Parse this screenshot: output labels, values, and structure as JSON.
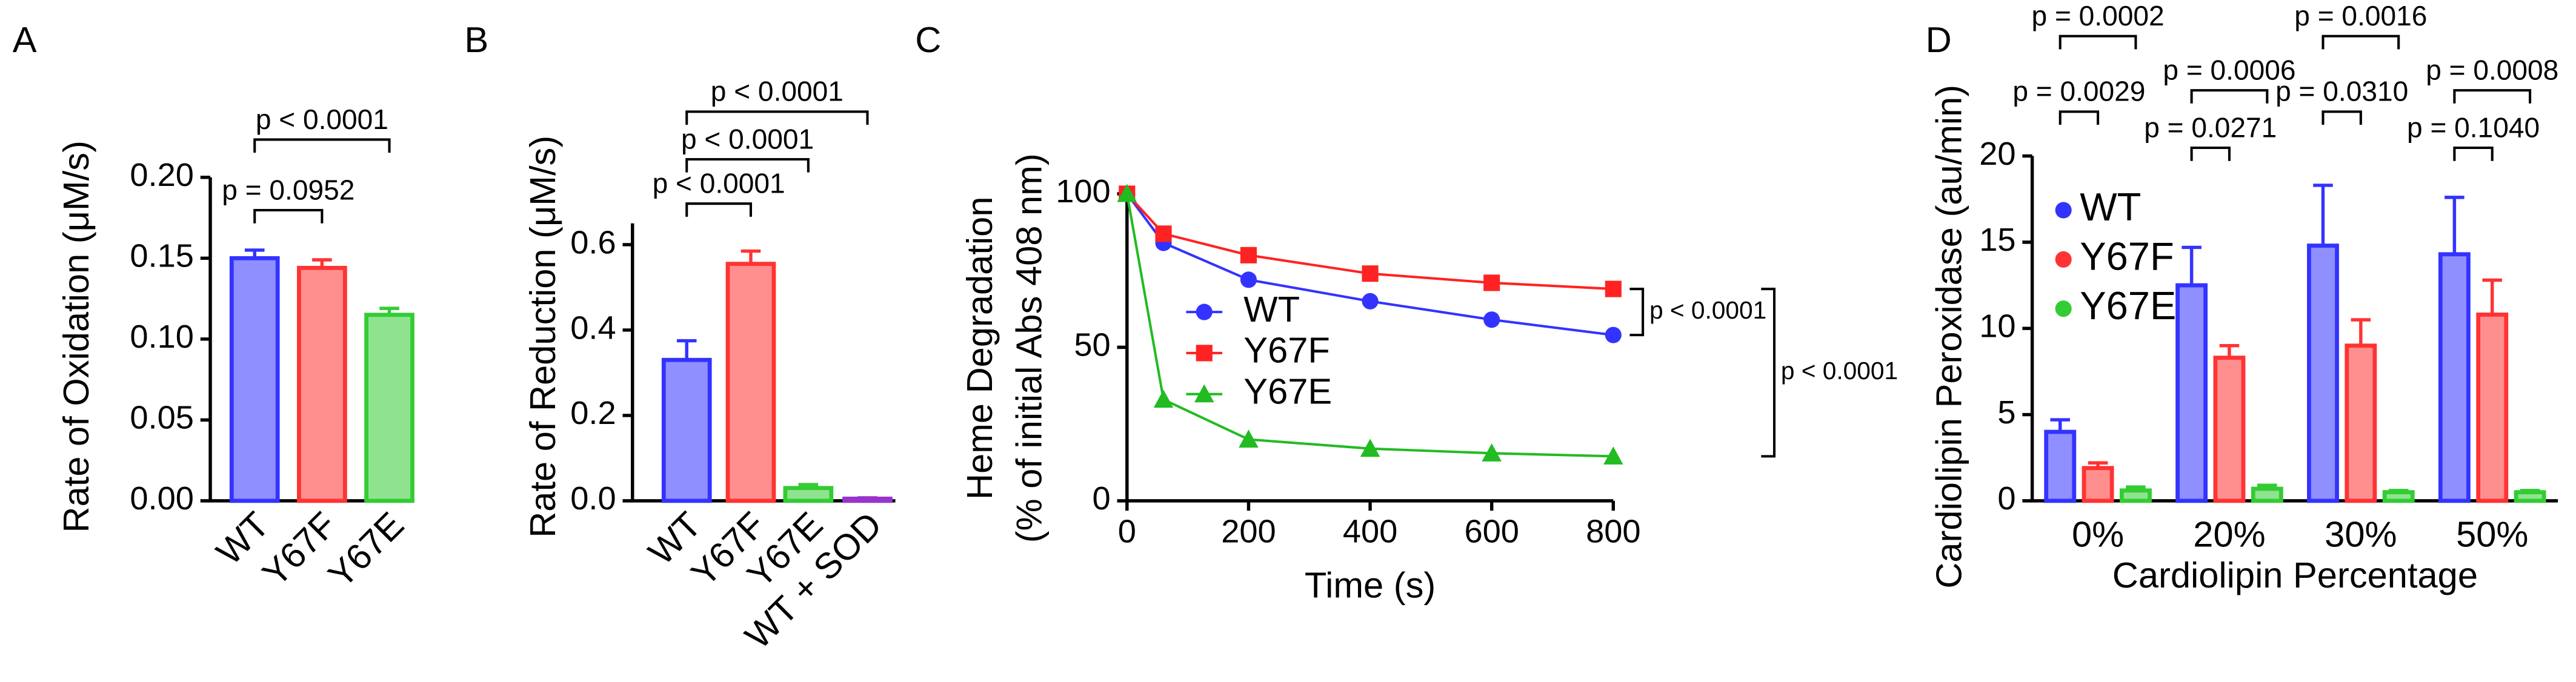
{
  "chart_data": [
    {
      "type": "bar",
      "label": "A",
      "ylabel": "Rate of Oxidation (μM/s)",
      "categories": [
        "WT",
        "Y67F",
        "Y67E"
      ],
      "values": [
        0.15,
        0.144,
        0.115
      ],
      "errors": [
        0.005,
        0.005,
        0.004
      ],
      "colors": [
        "#3333ff",
        "#ff3333",
        "#33cc33"
      ],
      "ylim": [
        0,
        0.2
      ],
      "yticks": [
        {
          "value": 0,
          "label": "0.00"
        },
        {
          "value": 0.05,
          "label": "0.05"
        },
        {
          "value": 0.1,
          "label": "0.10"
        },
        {
          "value": 0.15,
          "label": "0.15"
        },
        {
          "value": 0.2,
          "label": "0.20"
        }
      ],
      "annotations": [
        "p = 0.0952",
        "p < 0.0001"
      ]
    },
    {
      "type": "bar",
      "label": "B",
      "ylabel": "Rate of Reduction (μM/s)",
      "categories": [
        "WT",
        "Y67F",
        "Y67E",
        "WT + SOD"
      ],
      "values": [
        0.33,
        0.555,
        0.03,
        0.005
      ],
      "errors": [
        0.045,
        0.03,
        0.008,
        0.002
      ],
      "colors": [
        "#3333ff",
        "#ff3333",
        "#33cc33",
        "#9933cc"
      ],
      "ylim": [
        0,
        0.65
      ],
      "yticks": [
        {
          "value": 0,
          "label": "0.0"
        },
        0.2,
        0.4,
        0.6
      ],
      "annotations": [
        "p < 0.0001",
        "p < 0.0001",
        "p < 0.0001"
      ]
    },
    {
      "type": "line",
      "label": "C",
      "ylabel": [
        "Heme Degradation",
        "(% of initial Abs 408 nm)"
      ],
      "xlabel": "Time (s)",
      "x": [
        0,
        60,
        200,
        400,
        600,
        800
      ],
      "series": [
        {
          "name": "WT",
          "color": "#3333ff",
          "values": [
            100,
            84,
            72,
            65,
            59,
            54
          ]
        },
        {
          "name": "Y67F",
          "color": "#ff2222",
          "values": [
            100,
            87,
            80,
            74,
            71,
            69
          ]
        },
        {
          "name": "Y67E",
          "color": "#22bb22",
          "values": [
            100,
            33,
            20,
            17,
            15.5,
            14.5
          ]
        }
      ],
      "xlim": [
        0,
        800
      ],
      "xticks": [
        0,
        200,
        400,
        600,
        800
      ],
      "ylim": [
        0,
        100
      ],
      "yticks": [
        0,
        50,
        100
      ],
      "annotations": [
        "p < 0.0001",
        "p < 0.0001"
      ]
    },
    {
      "type": "bar",
      "label": "D",
      "ylabel": "Cardiolipin Peroxidase (au/min)",
      "xlabel": "Cardiolipin Percentage",
      "categories": [
        "0%",
        "20%",
        "30%",
        "50%"
      ],
      "series": [
        {
          "name": "WT",
          "color": "#3333ff",
          "values": [
            4.0,
            12.5,
            14.8,
            14.3
          ],
          "errors": [
            0.7,
            2.2,
            3.5,
            3.3
          ]
        },
        {
          "name": "Y67F",
          "color": "#ff3333",
          "values": [
            1.9,
            8.3,
            9.0,
            10.8
          ],
          "errors": [
            0.3,
            0.7,
            1.5,
            2.0
          ]
        },
        {
          "name": "Y67E",
          "color": "#33cc33",
          "values": [
            0.6,
            0.7,
            0.5,
            0.5
          ],
          "errors": [
            0.2,
            0.2,
            0.1,
            0.1
          ]
        }
      ],
      "ylim": [
        0,
        20
      ],
      "yticks": [
        0,
        5,
        10,
        15,
        20
      ],
      "annotations": [
        "p = 0.0029",
        "p = 0.0002",
        "p = 0.0271",
        "p = 0.0006",
        "p = 0.0310",
        "p = 0.0016",
        "p = 0.1040",
        "p = 0.0008"
      ]
    }
  ]
}
